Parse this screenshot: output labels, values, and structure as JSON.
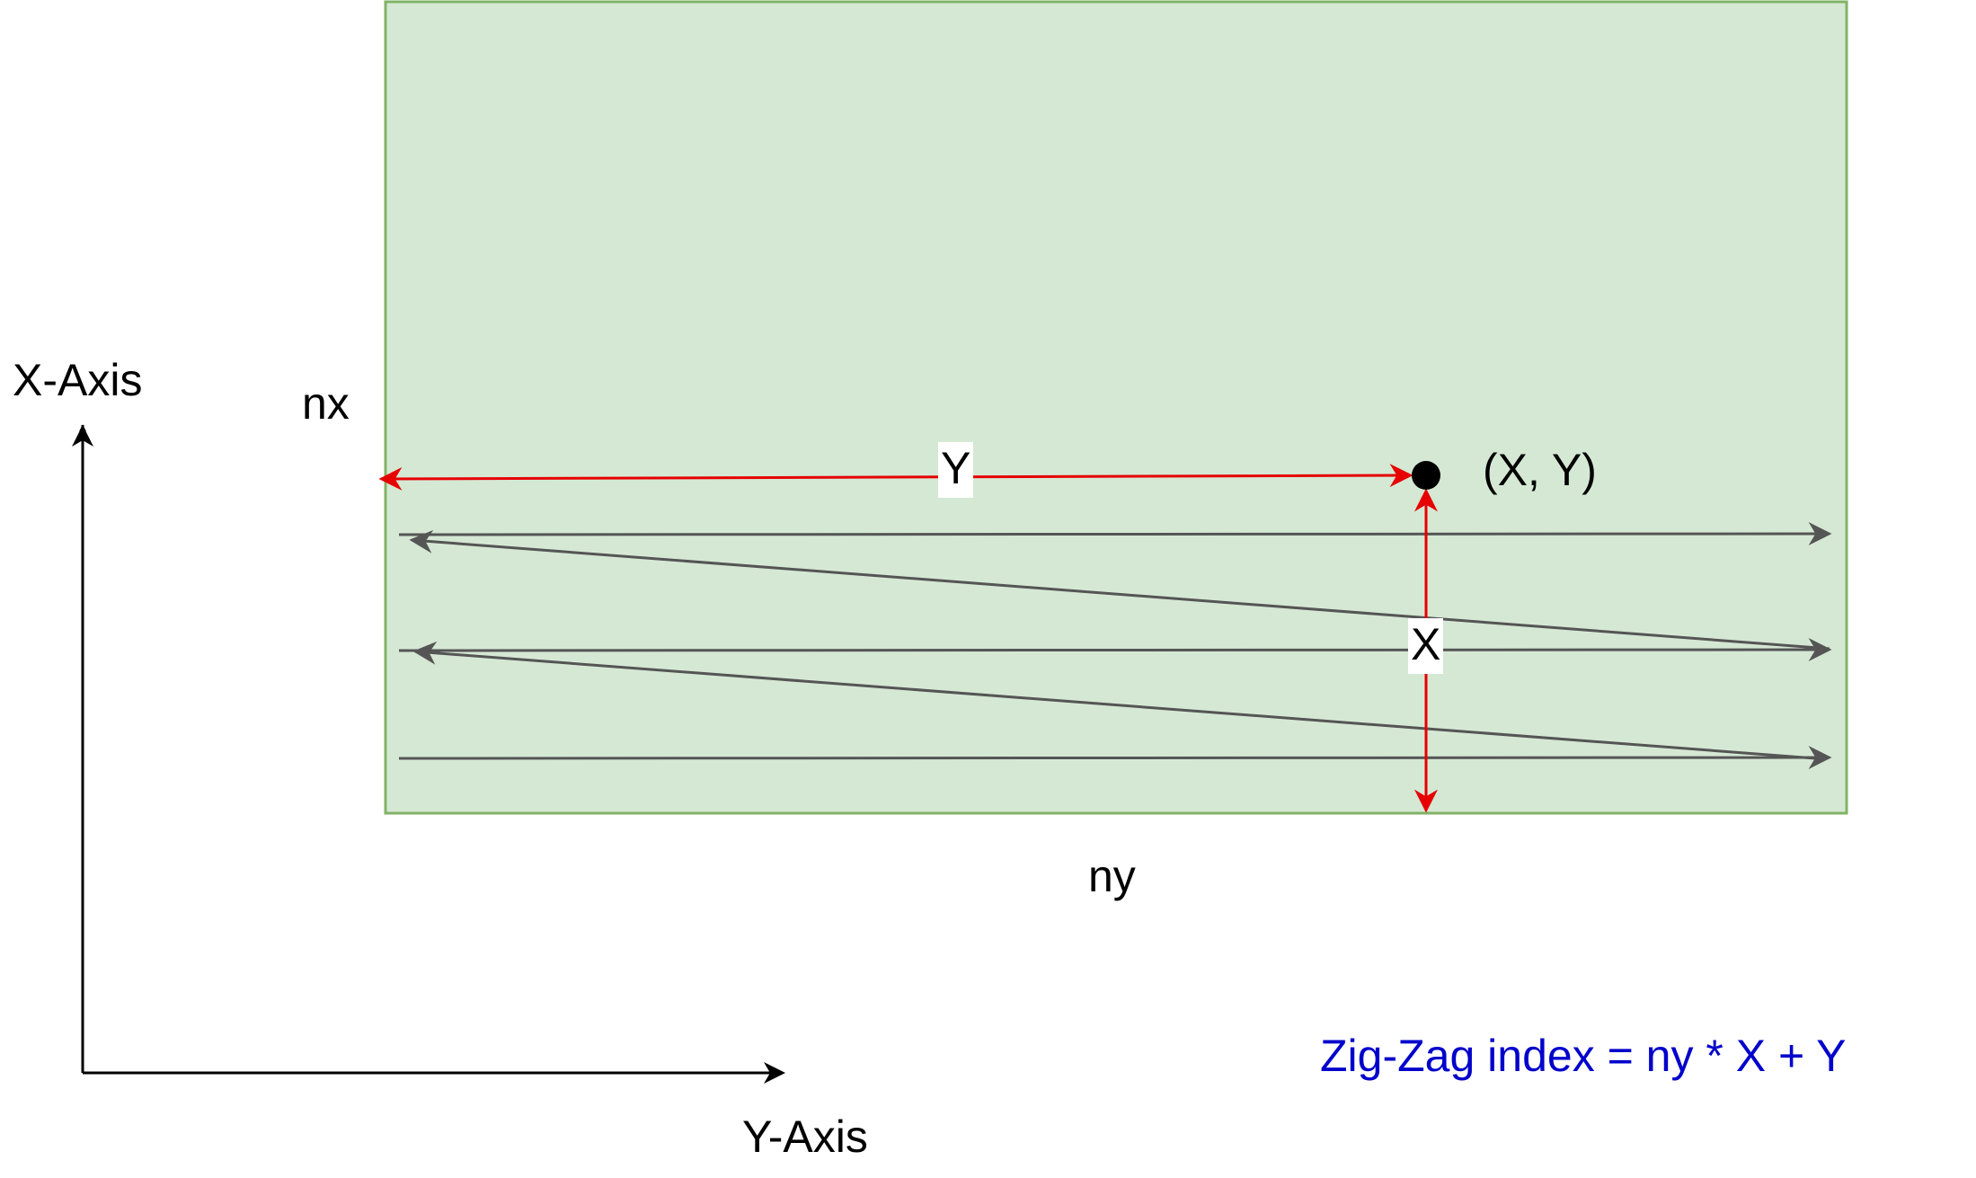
{
  "labels": {
    "x_axis": "X-Axis",
    "y_axis": "Y-Axis",
    "nx": "nx",
    "ny": "ny",
    "y_measure": "Y",
    "x_measure": "X",
    "point": "(X, Y)"
  },
  "formula": "Zig-Zag index = ny * X + Y",
  "colors": {
    "grid_fill": "#d5e8d4",
    "grid_border": "#82b366",
    "measure": "#e60000",
    "scan_path": "#555555",
    "axis": "#000000",
    "formula": "#0000cc"
  }
}
